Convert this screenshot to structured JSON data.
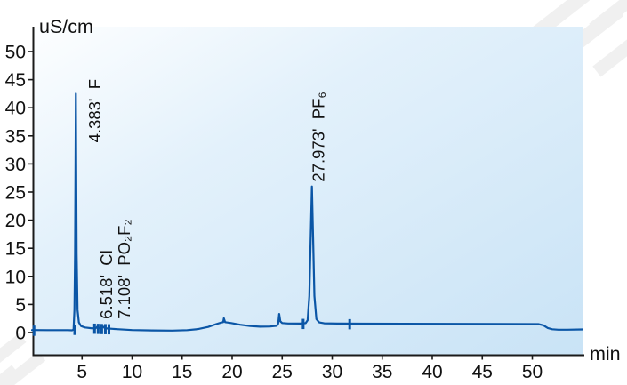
{
  "chart_data": {
    "type": "line",
    "kind": "ion-chromatography-chromatogram",
    "y_label": "uS/cm",
    "x_label": "min",
    "x_range": [
      0,
      55
    ],
    "y_range": [
      0,
      54.5
    ],
    "x_ticks": [
      5,
      10,
      15,
      20,
      25,
      30,
      35,
      40,
      45,
      50
    ],
    "y_ticks": [
      0,
      5,
      10,
      15,
      20,
      25,
      30,
      35,
      40,
      45,
      50
    ],
    "grid": "off",
    "legend": "none",
    "trace_color": "#0b56a6",
    "axis_color": "#1a1a1a",
    "plot_bg_gradient": [
      "#fdfeff",
      "#e3f1fb",
      "#c9e3f6"
    ],
    "peaks": [
      {
        "retention_time": 4.383,
        "ion": "F",
        "time_text": "4.383'",
        "height_uScm": 42.5,
        "label_anchor": [
          6.85,
          33.8
        ]
      },
      {
        "retention_time": 6.518,
        "ion": "Cl",
        "time_text": "6.518'",
        "height_uScm": 1.05,
        "label_anchor": [
          8.0,
          2.4
        ]
      },
      {
        "retention_time": 7.108,
        "ion": "PO₂F₂",
        "time_text": "7.108'",
        "height_uScm": 1.05,
        "label_anchor": [
          9.8,
          2.4
        ]
      },
      {
        "retention_time": 27.973,
        "ion": "PF₆",
        "time_text": "27.973'",
        "height_uScm": 26.0,
        "label_anchor": [
          29.2,
          26.8
        ]
      }
    ],
    "integration_marks": [
      [
        0.2,
        0.45
      ],
      [
        4.27,
        0.6
      ],
      [
        6.25,
        0.8
      ],
      [
        6.61,
        0.77
      ],
      [
        6.97,
        0.74
      ],
      [
        7.33,
        0.72
      ],
      [
        7.69,
        0.7
      ],
      [
        27.1,
        1.65
      ],
      [
        31.75,
        1.6
      ]
    ],
    "series": [
      {
        "name": "conductivity",
        "points": [
          [
            0,
            0.45
          ],
          [
            1.5,
            0.43
          ],
          [
            3.6,
            0.42
          ],
          [
            4.02,
            0.4
          ],
          [
            4.15,
            0.55
          ],
          [
            4.24,
            4
          ],
          [
            4.3,
            14
          ],
          [
            4.383,
            42.5
          ],
          [
            4.46,
            14
          ],
          [
            4.55,
            4
          ],
          [
            4.68,
            1.8
          ],
          [
            4.9,
            1.15
          ],
          [
            5.3,
            0.9
          ],
          [
            5.9,
            0.78
          ],
          [
            6.35,
            0.75
          ],
          [
            6.45,
            0.9
          ],
          [
            6.52,
            1.05
          ],
          [
            6.6,
            0.88
          ],
          [
            6.9,
            0.74
          ],
          [
            7.0,
            0.9
          ],
          [
            7.11,
            1.05
          ],
          [
            7.22,
            0.85
          ],
          [
            7.5,
            0.72
          ],
          [
            8.5,
            0.6
          ],
          [
            10,
            0.45
          ],
          [
            12,
            0.38
          ],
          [
            14,
            0.35
          ],
          [
            15.5,
            0.42
          ],
          [
            16.6,
            0.62
          ],
          [
            17.6,
            1.0
          ],
          [
            18.4,
            1.5
          ],
          [
            18.9,
            1.78
          ],
          [
            19.1,
            1.85
          ],
          [
            19.17,
            2.55
          ],
          [
            19.3,
            1.85
          ],
          [
            19.9,
            1.7
          ],
          [
            20.8,
            1.4
          ],
          [
            21.8,
            1.15
          ],
          [
            22.8,
            1.05
          ],
          [
            23.8,
            1.08
          ],
          [
            24.45,
            1.2
          ],
          [
            24.6,
            1.6
          ],
          [
            24.7,
            3.3
          ],
          [
            24.82,
            2.0
          ],
          [
            25.0,
            1.7
          ],
          [
            25.6,
            1.62
          ],
          [
            26.8,
            1.6
          ],
          [
            27.35,
            1.68
          ],
          [
            27.55,
            2.2
          ],
          [
            27.72,
            6.5
          ],
          [
            27.973,
            26.0
          ],
          [
            28.22,
            6.5
          ],
          [
            28.42,
            2.4
          ],
          [
            28.7,
            1.8
          ],
          [
            29.2,
            1.65
          ],
          [
            30.5,
            1.6
          ],
          [
            33,
            1.58
          ],
          [
            37,
            1.56
          ],
          [
            42,
            1.55
          ],
          [
            47,
            1.53
          ],
          [
            50.6,
            1.5
          ],
          [
            51.1,
            1.3
          ],
          [
            51.55,
            0.8
          ],
          [
            52.0,
            0.58
          ],
          [
            52.6,
            0.5
          ],
          [
            53.5,
            0.5
          ],
          [
            55,
            0.55
          ]
        ]
      }
    ]
  }
}
